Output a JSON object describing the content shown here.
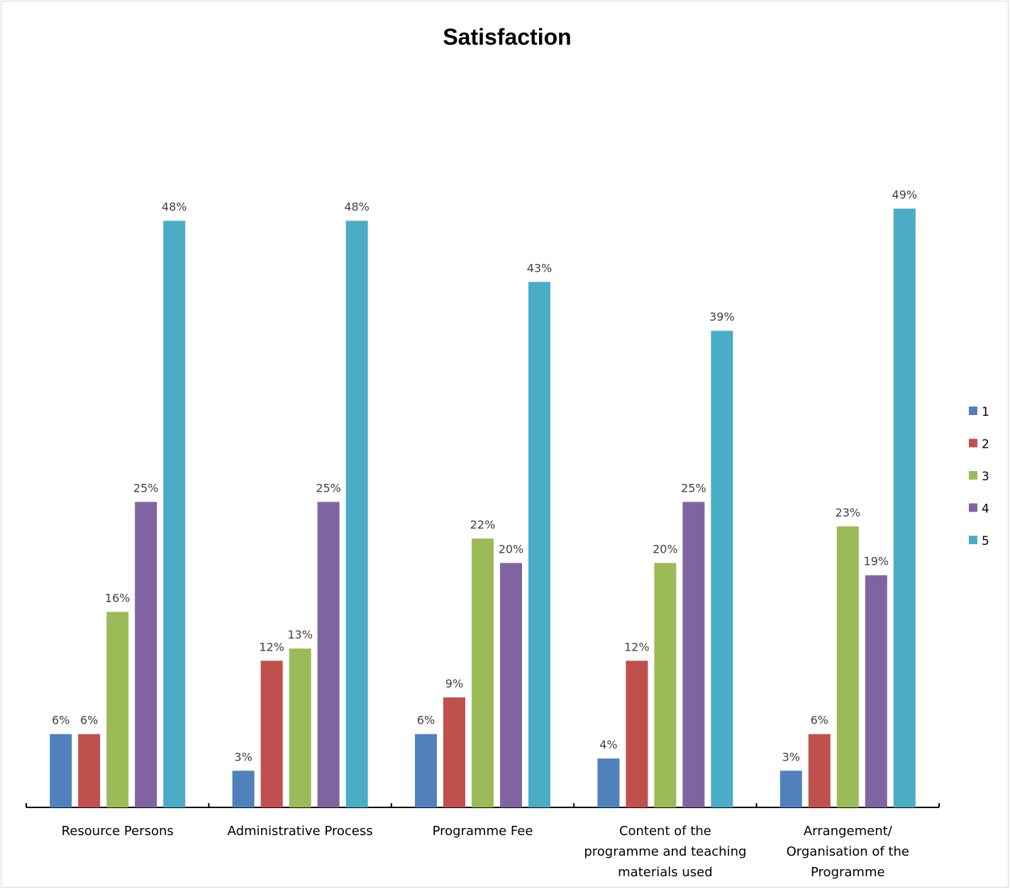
{
  "chart_data": {
    "type": "bar",
    "title": "Satisfaction",
    "categories": [
      [
        "Resource Persons"
      ],
      [
        "Administrative Process"
      ],
      [
        "Programme Fee"
      ],
      [
        "Content of the",
        "programme and teaching",
        "materials used"
      ],
      [
        "Arrangement/",
        "Organisation of the",
        "Programme"
      ]
    ],
    "series": [
      {
        "name": "1",
        "color": "#4f81bd",
        "values": [
          6,
          3,
          6,
          4,
          3
        ]
      },
      {
        "name": "2",
        "color": "#c0504d",
        "values": [
          6,
          12,
          9,
          12,
          6
        ]
      },
      {
        "name": "3",
        "color": "#9bbb59",
        "values": [
          16,
          13,
          22,
          20,
          23
        ]
      },
      {
        "name": "4",
        "color": "#8064a2",
        "values": [
          25,
          25,
          20,
          25,
          19
        ]
      },
      {
        "name": "5",
        "color": "#4bacc6",
        "values": [
          48,
          48,
          43,
          39,
          49
        ]
      }
    ],
    "value_suffix": "%",
    "ylim": [
      0,
      49
    ],
    "grid": false,
    "legend": "right"
  }
}
